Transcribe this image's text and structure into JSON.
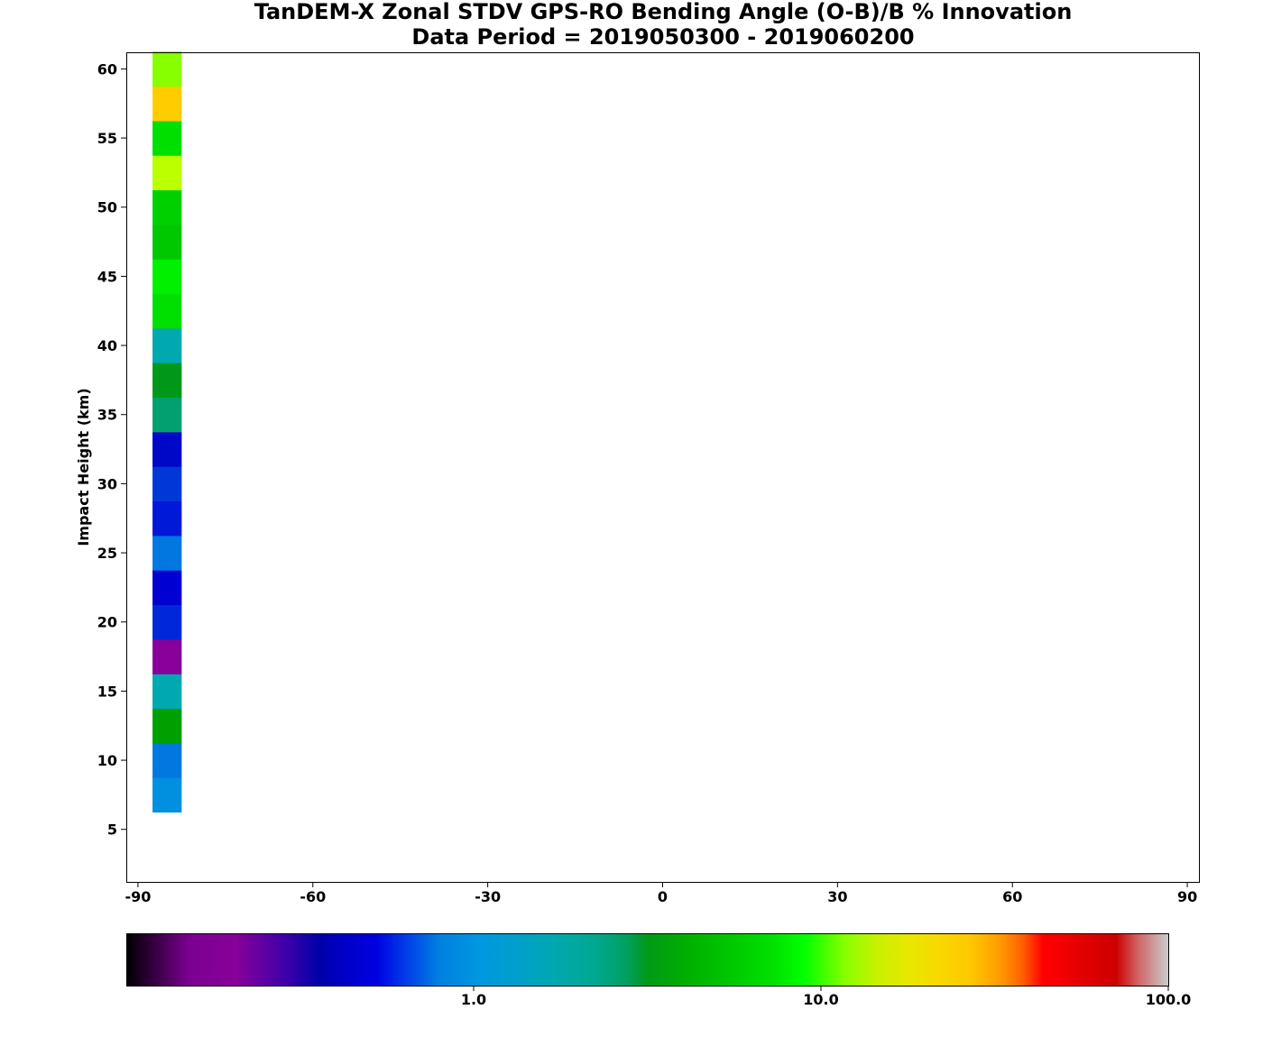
{
  "chart_data": {
    "type": "heatmap",
    "title": "TanDEM-X Zonal STDV GPS-RO Bending Angle (O-B)/B % Innovation",
    "subtitle": "Data Period = 2019050300 - 2019060200",
    "xlabel": "",
    "ylabel": "Impact Height (km)",
    "xlim": [
      -92,
      92
    ],
    "ylim": [
      1.2,
      61.2
    ],
    "xticks": [
      "-90",
      "-60",
      "-30",
      "0",
      "30",
      "60",
      "90"
    ],
    "yticks": [
      "5",
      "10",
      "15",
      "20",
      "25",
      "30",
      "35",
      "40",
      "45",
      "50",
      "55",
      "60"
    ],
    "grid": false,
    "cells": [
      {
        "lat": -85,
        "height": 7.5,
        "color": "#0090e0"
      },
      {
        "lat": -85,
        "height": 10,
        "color": "#0078e0"
      },
      {
        "lat": -85,
        "height": 12.5,
        "color": "#00a000"
      },
      {
        "lat": -85,
        "height": 15,
        "color": "#00a8b0"
      },
      {
        "lat": -85,
        "height": 17.5,
        "color": "#880099"
      },
      {
        "lat": -85,
        "height": 20,
        "color": "#0028d8"
      },
      {
        "lat": -85,
        "height": 22.5,
        "color": "#0000d0"
      },
      {
        "lat": -85,
        "height": 25,
        "color": "#0078e0"
      },
      {
        "lat": -85,
        "height": 27.5,
        "color": "#0018d8"
      },
      {
        "lat": -85,
        "height": 30,
        "color": "#0038d8"
      },
      {
        "lat": -85,
        "height": 32.5,
        "color": "#0008c8"
      },
      {
        "lat": -85,
        "height": 35,
        "color": "#00a070"
      },
      {
        "lat": -85,
        "height": 37.5,
        "color": "#009818"
      },
      {
        "lat": -85,
        "height": 40,
        "color": "#00a8b0"
      },
      {
        "lat": -85,
        "height": 42.5,
        "color": "#00e000"
      },
      {
        "lat": -85,
        "height": 45,
        "color": "#00f000"
      },
      {
        "lat": -85,
        "height": 47.5,
        "color": "#00c800"
      },
      {
        "lat": -85,
        "height": 50,
        "color": "#00d000"
      },
      {
        "lat": -85,
        "height": 52.5,
        "color": "#bbff00"
      },
      {
        "lat": -85,
        "height": 55,
        "color": "#00e000"
      },
      {
        "lat": -85,
        "height": 57.5,
        "color": "#ffcc00"
      },
      {
        "lat": -85,
        "height": 60,
        "color": "#88ff00"
      }
    ],
    "colorbar": {
      "scale": "log",
      "range": [
        0.1,
        100
      ],
      "ticks": [
        "1.0",
        "10.0",
        "100.0"
      ],
      "stops": [
        {
          "t": 0.0,
          "color": "#000000"
        },
        {
          "t": 0.06,
          "color": "#7a0090"
        },
        {
          "t": 0.105,
          "color": "#880099"
        },
        {
          "t": 0.155,
          "color": "#3a00aa"
        },
        {
          "t": 0.185,
          "color": "#0000a8"
        },
        {
          "t": 0.21,
          "color": "#0000c8"
        },
        {
          "t": 0.24,
          "color": "#0000e0"
        },
        {
          "t": 0.27,
          "color": "#0040e8"
        },
        {
          "t": 0.3,
          "color": "#0080e0"
        },
        {
          "t": 0.34,
          "color": "#0098e0"
        },
        {
          "t": 0.38,
          "color": "#00a0c8"
        },
        {
          "t": 0.41,
          "color": "#00a8b0"
        },
        {
          "t": 0.45,
          "color": "#00a890"
        },
        {
          "t": 0.48,
          "color": "#00a060"
        },
        {
          "t": 0.5,
          "color": "#009a18"
        },
        {
          "t": 0.54,
          "color": "#00b000"
        },
        {
          "t": 0.58,
          "color": "#00c800"
        },
        {
          "t": 0.62,
          "color": "#00e000"
        },
        {
          "t": 0.65,
          "color": "#00ff00"
        },
        {
          "t": 0.69,
          "color": "#88ff00"
        },
        {
          "t": 0.72,
          "color": "#c8f000"
        },
        {
          "t": 0.75,
          "color": "#e8e800"
        },
        {
          "t": 0.78,
          "color": "#f8d800"
        },
        {
          "t": 0.81,
          "color": "#ffc800"
        },
        {
          "t": 0.84,
          "color": "#ff9800"
        },
        {
          "t": 0.86,
          "color": "#ff6000"
        },
        {
          "t": 0.88,
          "color": "#ff0000"
        },
        {
          "t": 0.92,
          "color": "#e00000"
        },
        {
          "t": 0.95,
          "color": "#cc0000"
        },
        {
          "t": 0.97,
          "color": "#d06060"
        },
        {
          "t": 1.0,
          "color": "#cccccc"
        }
      ]
    }
  }
}
